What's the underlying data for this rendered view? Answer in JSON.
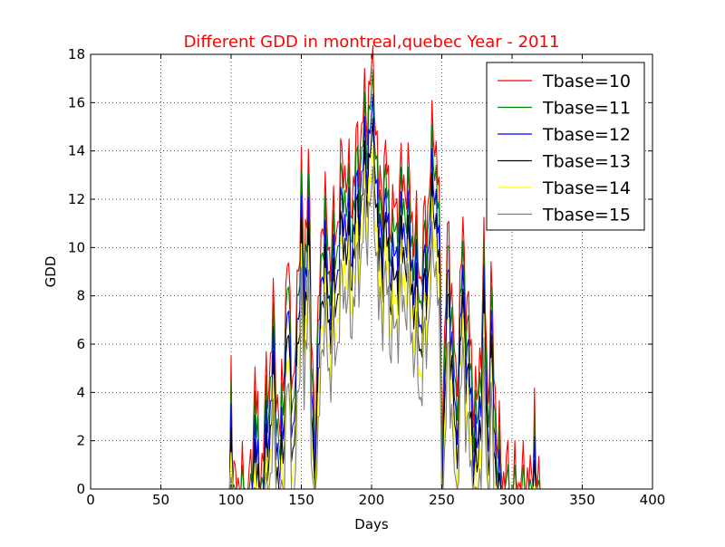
{
  "chart_data": {
    "type": "line",
    "title": "Different GDD in montreal,quebec Year - 2011",
    "title_color": "#ff0000",
    "xlabel": "Days",
    "ylabel": "GDD",
    "xlim": [
      0,
      400
    ],
    "ylim": [
      0,
      18
    ],
    "x_ticks": [
      0,
      50,
      100,
      150,
      200,
      250,
      300,
      350,
      400
    ],
    "y_ticks": [
      0,
      2,
      4,
      6,
      8,
      10,
      12,
      14,
      16,
      18
    ],
    "grid": true,
    "legend_position": "top-right",
    "day_range": [
      1,
      365
    ],
    "profile_keypoints": {
      "day": [
        1,
        99,
        100,
        101,
        105,
        110,
        115,
        117,
        120,
        125,
        130,
        135,
        140,
        145,
        150,
        152,
        155,
        157,
        160,
        165,
        170,
        175,
        180,
        185,
        190,
        195,
        200,
        202,
        205,
        210,
        215,
        220,
        225,
        230,
        235,
        240,
        245,
        248,
        250,
        255,
        260,
        265,
        270,
        275,
        280,
        283,
        285,
        290,
        295,
        300,
        310,
        315,
        316,
        317,
        320,
        365
      ],
      "tbase10": [
        0,
        0,
        6.1,
        0,
        0,
        0,
        0,
        5.9,
        0,
        3.7,
        7.0,
        2.0,
        9.4,
        4.0,
        13.3,
        8.0,
        14.9,
        6.0,
        3.0,
        12.0,
        10.0,
        11.0,
        13.8,
        12.0,
        14.0,
        15.6,
        16.9,
        17.3,
        12.0,
        13.5,
        11.0,
        12.5,
        13.0,
        11.0,
        9.0,
        12.0,
        15.3,
        12.0,
        3.0,
        11.0,
        4.0,
        10.5,
        6.0,
        3.0,
        9.3,
        4.0,
        8.0,
        1.7,
        0.5,
        0,
        0.3,
        0,
        4.2,
        0,
        0,
        0
      ]
    },
    "series": [
      {
        "name": "Tbase=10",
        "color": "#ff0000",
        "offset": 0
      },
      {
        "name": "Tbase=11",
        "color": "#008000",
        "offset": 1
      },
      {
        "name": "Tbase=12",
        "color": "#0000ff",
        "offset": 2
      },
      {
        "name": "Tbase=13",
        "color": "#000000",
        "offset": 3
      },
      {
        "name": "Tbase=14",
        "color": "#ffff00",
        "offset": 4
      },
      {
        "name": "Tbase=15",
        "color": "#808080",
        "offset": 5
      }
    ]
  }
}
